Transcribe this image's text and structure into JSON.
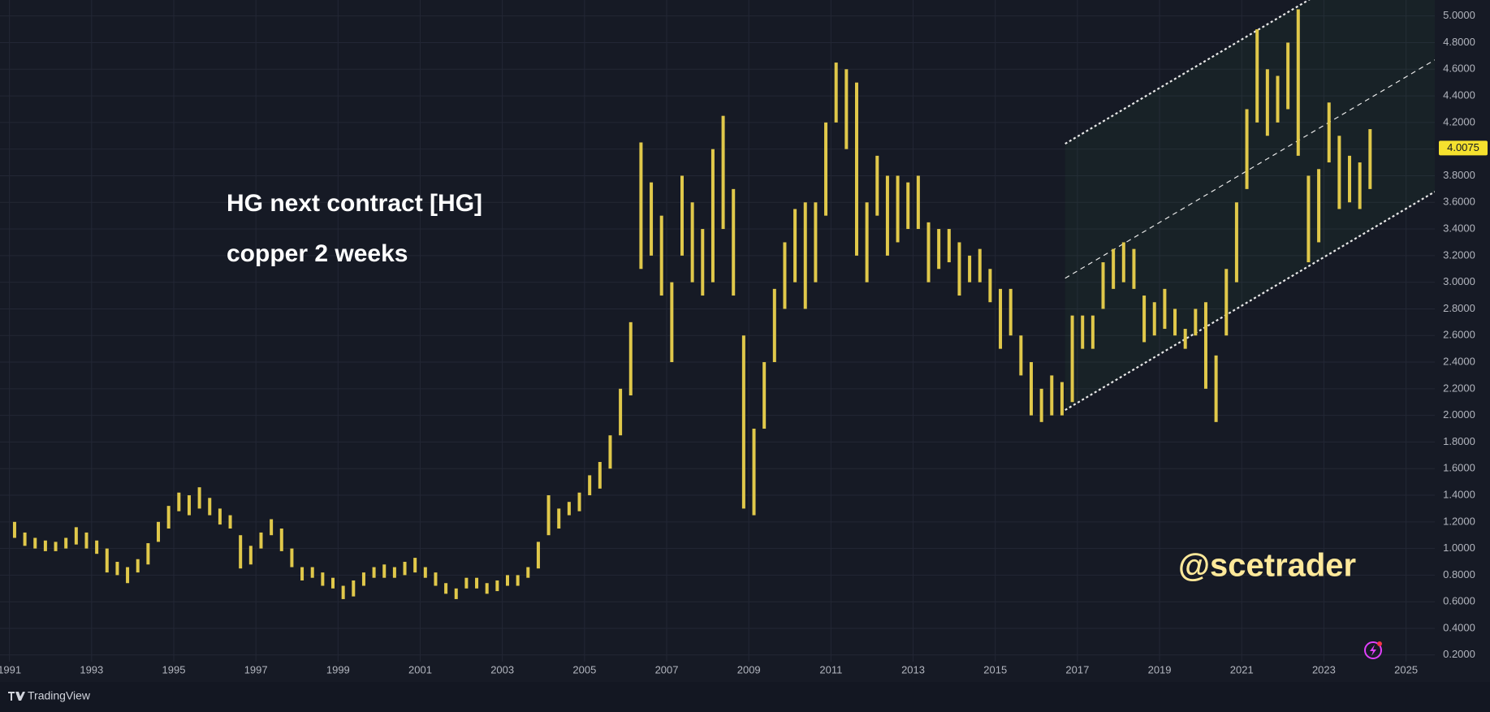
{
  "chart_data": {
    "type": "ohlc",
    "title": "HG next contract [HG]",
    "subtitle": "copper 2 weeks",
    "annotations": [
      "@scetrader"
    ],
    "color": "#e0c84a",
    "grid": true,
    "xlim": [
      1990.77,
      2025.7
    ],
    "ylim": [
      0.15,
      5.12
    ],
    "xticks": [
      1991,
      1993,
      1995,
      1997,
      1999,
      2001,
      2003,
      2005,
      2007,
      2009,
      2011,
      2013,
      2015,
      2017,
      2019,
      2021,
      2023,
      2025
    ],
    "yticks": [
      {
        "value": 0.2,
        "label": "0.2000"
      },
      {
        "value": 0.4,
        "label": "0.4000"
      },
      {
        "value": 0.6,
        "label": "0.6000"
      },
      {
        "value": 0.8,
        "label": "0.8000"
      },
      {
        "value": 1.0,
        "label": "1.0000"
      },
      {
        "value": 1.2,
        "label": "1.2000"
      },
      {
        "value": 1.4,
        "label": "1.4000"
      },
      {
        "value": 1.6,
        "label": "1.6000"
      },
      {
        "value": 1.8,
        "label": "1.8000"
      },
      {
        "value": 2.0,
        "label": "2.0000"
      },
      {
        "value": 2.2,
        "label": "2.2000"
      },
      {
        "value": 2.4,
        "label": "2.4000"
      },
      {
        "value": 2.6,
        "label": "2.6000"
      },
      {
        "value": 2.8,
        "label": "2.8000"
      },
      {
        "value": 3.0,
        "label": "3.0000"
      },
      {
        "value": 3.2,
        "label": "3.2000"
      },
      {
        "value": 3.4,
        "label": "3.4000"
      },
      {
        "value": 3.6,
        "label": "3.6000"
      },
      {
        "value": 3.8,
        "label": "3.8000"
      },
      {
        "value": 4.0,
        "label": "4.0000"
      },
      {
        "value": 4.2,
        "label": "4.2000"
      },
      {
        "value": 4.4,
        "label": "4.4000"
      },
      {
        "value": 4.6,
        "label": "4.6000"
      },
      {
        "value": 4.8,
        "label": "4.8000"
      },
      {
        "value": 5.0,
        "label": "5.0000"
      }
    ],
    "last_price": 4.0075,
    "x": [
      1991.125,
      1991.375,
      1991.625,
      1991.875,
      1992.125,
      1992.375,
      1992.625,
      1992.875,
      1993.125,
      1993.375,
      1993.625,
      1993.875,
      1994.125,
      1994.375,
      1994.625,
      1994.875,
      1995.125,
      1995.375,
      1995.625,
      1995.875,
      1996.125,
      1996.375,
      1996.625,
      1996.875,
      1997.125,
      1997.375,
      1997.625,
      1997.875,
      1998.125,
      1998.375,
      1998.625,
      1998.875,
      1999.125,
      1999.375,
      1999.625,
      1999.875,
      2000.125,
      2000.375,
      2000.625,
      2000.875,
      2001.125,
      2001.375,
      2001.625,
      2001.875,
      2002.125,
      2002.375,
      2002.625,
      2002.875,
      2003.125,
      2003.375,
      2003.625,
      2003.875,
      2004.125,
      2004.375,
      2004.625,
      2004.875,
      2005.125,
      2005.375,
      2005.625,
      2005.875,
      2006.125,
      2006.375,
      2006.625,
      2006.875,
      2007.125,
      2007.375,
      2007.625,
      2007.875,
      2008.125,
      2008.375,
      2008.625,
      2008.875,
      2009.125,
      2009.375,
      2009.625,
      2009.875,
      2010.125,
      2010.375,
      2010.625,
      2010.875,
      2011.125,
      2011.375,
      2011.625,
      2011.875,
      2012.125,
      2012.375,
      2012.625,
      2012.875,
      2013.125,
      2013.375,
      2013.625,
      2013.875,
      2014.125,
      2014.375,
      2014.625,
      2014.875,
      2015.125,
      2015.375,
      2015.625,
      2015.875,
      2016.125,
      2016.375,
      2016.625,
      2016.875,
      2017.125,
      2017.375,
      2017.625,
      2017.875,
      2018.125,
      2018.375,
      2018.625,
      2018.875,
      2019.125,
      2019.375,
      2019.625,
      2019.875,
      2020.125,
      2020.375,
      2020.625,
      2020.875,
      2021.125,
      2021.375,
      2021.625,
      2021.875,
      2022.125,
      2022.375,
      2022.625,
      2022.875,
      2023.125,
      2023.375,
      2023.625,
      2023.875,
      2024.125
    ],
    "high": [
      1.2,
      1.12,
      1.08,
      1.06,
      1.05,
      1.08,
      1.16,
      1.12,
      1.06,
      1.0,
      0.9,
      0.86,
      0.92,
      1.04,
      1.2,
      1.32,
      1.42,
      1.4,
      1.46,
      1.38,
      1.3,
      1.25,
      1.1,
      1.02,
      1.12,
      1.22,
      1.15,
      1.0,
      0.86,
      0.86,
      0.82,
      0.78,
      0.72,
      0.76,
      0.82,
      0.86,
      0.88,
      0.86,
      0.9,
      0.93,
      0.86,
      0.82,
      0.74,
      0.7,
      0.78,
      0.78,
      0.74,
      0.76,
      0.8,
      0.8,
      0.86,
      1.05,
      1.4,
      1.3,
      1.35,
      1.42,
      1.55,
      1.65,
      1.85,
      2.2,
      2.7,
      4.05,
      3.75,
      3.5,
      3.0,
      3.8,
      3.6,
      3.4,
      4.0,
      4.25,
      3.7,
      2.6,
      1.9,
      2.4,
      2.95,
      3.3,
      3.55,
      3.6,
      3.6,
      4.2,
      4.65,
      4.6,
      4.5,
      3.6,
      3.95,
      3.8,
      3.8,
      3.75,
      3.8,
      3.45,
      3.4,
      3.4,
      3.3,
      3.2,
      3.25,
      3.1,
      2.95,
      2.95,
      2.6,
      2.4,
      2.2,
      2.3,
      2.25,
      2.75,
      2.75,
      2.75,
      3.15,
      3.25,
      3.3,
      3.25,
      2.9,
      2.85,
      2.95,
      2.8,
      2.65,
      2.8,
      2.85,
      2.45,
      3.1,
      3.6,
      4.3,
      4.9,
      4.6,
      4.55,
      4.8,
      5.05,
      3.8,
      3.85,
      4.35,
      4.1,
      3.95,
      3.9,
      4.15
    ],
    "low": [
      1.08,
      1.02,
      1.0,
      0.98,
      0.98,
      1.0,
      1.03,
      1.0,
      0.96,
      0.82,
      0.8,
      0.74,
      0.82,
      0.88,
      1.05,
      1.15,
      1.28,
      1.25,
      1.3,
      1.25,
      1.18,
      1.15,
      0.85,
      0.88,
      1.0,
      1.1,
      0.98,
      0.86,
      0.76,
      0.78,
      0.72,
      0.7,
      0.62,
      0.64,
      0.72,
      0.78,
      0.78,
      0.78,
      0.8,
      0.82,
      0.78,
      0.72,
      0.66,
      0.62,
      0.7,
      0.7,
      0.66,
      0.68,
      0.72,
      0.72,
      0.78,
      0.85,
      1.1,
      1.15,
      1.25,
      1.28,
      1.4,
      1.45,
      1.6,
      1.85,
      2.15,
      3.1,
      3.2,
      2.9,
      2.4,
      3.2,
      3.0,
      2.9,
      3.0,
      3.4,
      2.9,
      1.3,
      1.25,
      1.9,
      2.4,
      2.8,
      3.0,
      2.8,
      3.0,
      3.5,
      4.2,
      4.0,
      3.2,
      3.0,
      3.5,
      3.2,
      3.3,
      3.4,
      3.4,
      3.0,
      3.1,
      3.15,
      2.9,
      3.0,
      3.0,
      2.85,
      2.5,
      2.6,
      2.3,
      2.0,
      1.95,
      2.0,
      2.0,
      2.1,
      2.5,
      2.5,
      2.8,
      2.95,
      3.0,
      2.95,
      2.55,
      2.6,
      2.65,
      2.6,
      2.5,
      2.6,
      2.2,
      1.95,
      2.6,
      3.0,
      3.7,
      4.2,
      4.1,
      4.2,
      4.3,
      3.95,
      3.15,
      3.3,
      3.9,
      3.55,
      3.6,
      3.55,
      3.7
    ],
    "channel": {
      "x": [
        2016.7,
        2025.7
      ],
      "lower": [
        2.04,
        3.68
      ],
      "middle": [
        3.03,
        4.67
      ],
      "upper": [
        4.04,
        5.68
      ]
    }
  },
  "branding": "TradingView"
}
